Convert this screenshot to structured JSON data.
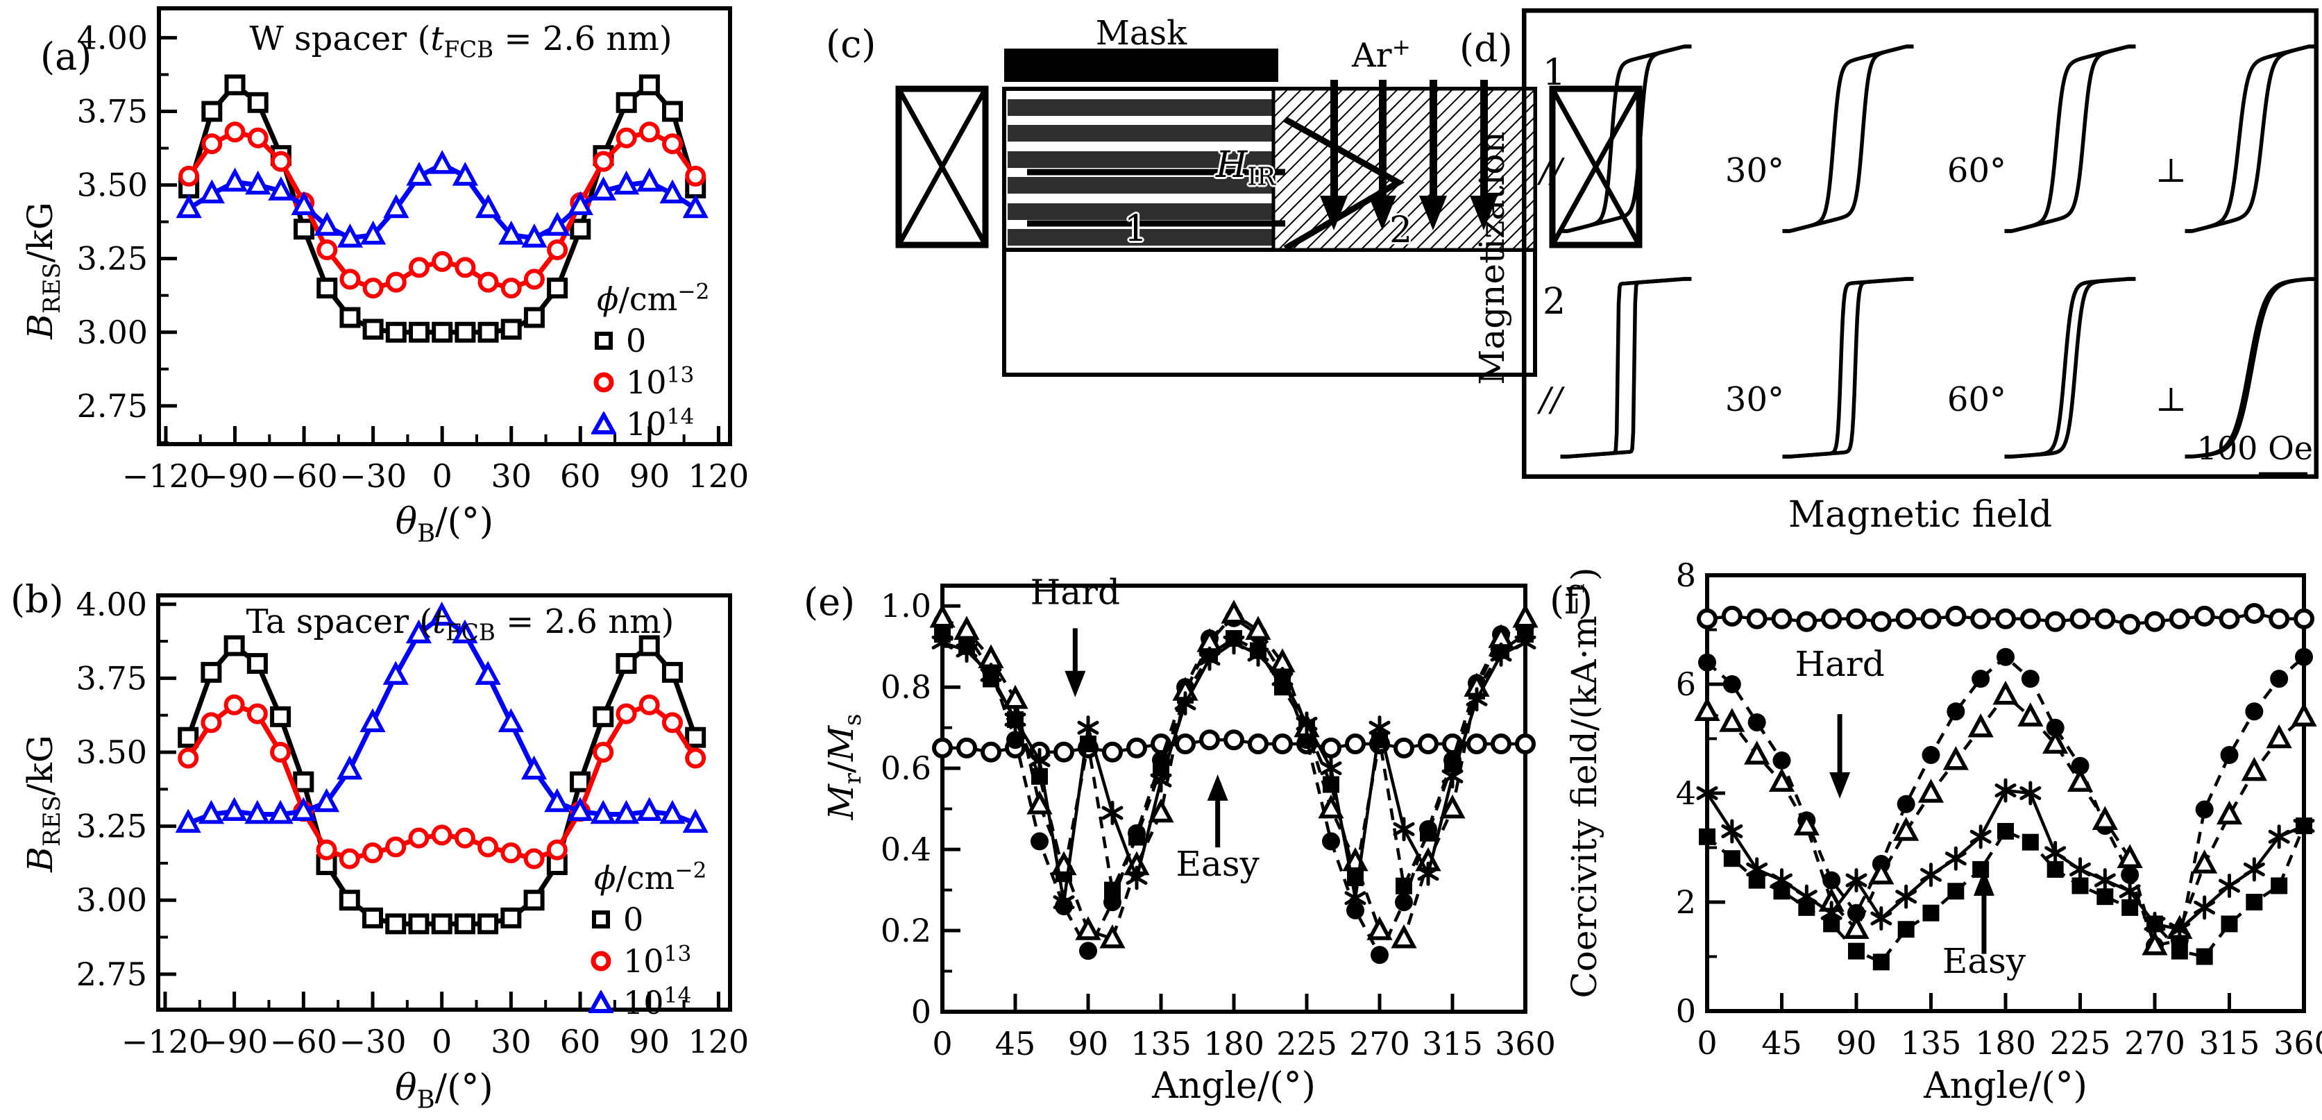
{
  "figure_colors": {
    "black": "#000000",
    "red": "#ff0000",
    "blue": "#0000ff"
  },
  "panel_labels": {
    "a": "(a)",
    "b": "(b)",
    "c": "(c)",
    "d": "(d)",
    "e": "(e)",
    "f": "(f)"
  },
  "panels": {
    "a": {
      "title": "W spacer (*t*_{FCB} = 2.6 nm)",
      "ylabel": "*B*_{RES}/kG",
      "xlabel": "*θ*_{B}/(°)",
      "legend": {
        "title": "*ϕ*/cm^{−2}",
        "entries": [
          {
            "label": "0",
            "marker": "open-square",
            "color": "#000000"
          },
          {
            "label": "10^{13}",
            "marker": "open-circle",
            "color": "#ff0000"
          },
          {
            "label": "10^{14}",
            "marker": "open-triangle",
            "color": "#0000ff"
          }
        ]
      }
    },
    "b": {
      "title": "Ta spacer (*t*_{FCB} = 2.6 nm)",
      "ylabel": "*B*_{RES}/kG",
      "xlabel": "*θ*_{B}/(°)",
      "legend": {
        "title": "*ϕ*/cm^{−2}",
        "entries": [
          {
            "label": "0",
            "marker": "open-square",
            "color": "#000000"
          },
          {
            "label": "10^{13}",
            "marker": "open-circle",
            "color": "#ff0000"
          },
          {
            "label": "10^{14}",
            "marker": "open-triangle",
            "color": "#0000ff"
          }
        ]
      }
    },
    "c": {
      "mask": "Mask",
      "ion": "Ar^{+}",
      "field": "*H*_{IR}",
      "region1": "1",
      "region2": "2"
    },
    "d": {
      "ylabel": "Magnetization",
      "xlabel": "Magnetic field",
      "scalebar": "100 Oe"
    },
    "e": {
      "ylabel": "*M*_{r}/*M*_{s}",
      "xlabel": "Angle/(°)"
    },
    "f": {
      "ylabel": "Coercivity field/(kA·m^{−1})",
      "xlabel": "Angle/(°)"
    }
  },
  "chart_data": [
    {
      "id": "a",
      "type": "line",
      "title": "W spacer (t_FCB = 2.6 nm)",
      "xlabel": "theta_B/(deg)",
      "ylabel": "B_RES/kG",
      "xlim": [
        -123,
        125
      ],
      "ylim": [
        2.62,
        4.1
      ],
      "xticks": [
        -120,
        -90,
        -60,
        -30,
        0,
        30,
        60,
        90,
        120
      ],
      "xtick_labels": [
        "−120",
        "−90",
        "−60",
        "−30",
        "0",
        "30",
        "60",
        "90",
        "120"
      ],
      "xminor": 15,
      "yticks": [
        2.75,
        3.0,
        3.25,
        3.5,
        3.75,
        4.0
      ],
      "ytick_labels": [
        "2.75",
        "3.00",
        "3.25",
        "3.50",
        "3.75",
        "4.00"
      ],
      "yminor": 0.125,
      "grid": false,
      "legend_position": "lower-right",
      "x": [
        -110,
        -100,
        -90,
        -80,
        -70,
        -60,
        -50,
        -40,
        -30,
        -20,
        -10,
        0,
        10,
        20,
        30,
        40,
        50,
        60,
        70,
        80,
        90,
        100,
        110
      ],
      "series": [
        {
          "name": "0",
          "marker": "open-square",
          "color": "#000000",
          "line": "solid",
          "values": [
            3.49,
            3.75,
            3.84,
            3.78,
            3.6,
            3.35,
            3.15,
            3.05,
            3.01,
            3.0,
            3.0,
            3.0,
            3.0,
            3.0,
            3.01,
            3.05,
            3.15,
            3.35,
            3.6,
            3.78,
            3.84,
            3.75,
            3.49
          ]
        },
        {
          "name": "10^13",
          "marker": "open-circle",
          "color": "#ff0000",
          "line": "solid",
          "values": [
            3.53,
            3.64,
            3.68,
            3.66,
            3.58,
            3.44,
            3.28,
            3.18,
            3.15,
            3.17,
            3.22,
            3.24,
            3.22,
            3.17,
            3.15,
            3.18,
            3.28,
            3.44,
            3.58,
            3.66,
            3.68,
            3.64,
            3.53
          ]
        },
        {
          "name": "10^14",
          "marker": "open-triangle",
          "color": "#0000ff",
          "line": "solid",
          "values": [
            3.42,
            3.47,
            3.51,
            3.5,
            3.48,
            3.43,
            3.36,
            3.32,
            3.33,
            3.42,
            3.53,
            3.57,
            3.53,
            3.42,
            3.33,
            3.32,
            3.36,
            3.43,
            3.48,
            3.5,
            3.51,
            3.47,
            3.42
          ]
        }
      ],
      "annotations": []
    },
    {
      "id": "b",
      "type": "line",
      "title": "Ta spacer (t_FCB = 2.6 nm)",
      "xlabel": "theta_B/(deg)",
      "ylabel": "B_RES/kG",
      "xlim": [
        -123,
        125
      ],
      "ylim": [
        2.63,
        4.03
      ],
      "xticks": [
        -120,
        -90,
        -60,
        -30,
        0,
        30,
        60,
        90,
        120
      ],
      "xtick_labels": [
        "−120",
        "−90",
        "−60",
        "−30",
        "0",
        "30",
        "60",
        "90",
        "120"
      ],
      "xminor": 15,
      "yticks": [
        2.75,
        3.0,
        3.25,
        3.5,
        3.75,
        4.0
      ],
      "ytick_labels": [
        "2.75",
        "3.00",
        "3.25",
        "3.50",
        "3.75",
        "4.00"
      ],
      "yminor": 0.125,
      "grid": false,
      "legend_position": "lower-right",
      "x": [
        -110,
        -100,
        -90,
        -80,
        -70,
        -60,
        -50,
        -40,
        -30,
        -20,
        -10,
        0,
        10,
        20,
        30,
        40,
        50,
        60,
        70,
        80,
        90,
        100,
        110
      ],
      "series": [
        {
          "name": "0",
          "marker": "open-square",
          "color": "#000000",
          "line": "solid",
          "values": [
            3.55,
            3.77,
            3.86,
            3.8,
            3.62,
            3.4,
            3.12,
            3.0,
            2.94,
            2.92,
            2.92,
            2.92,
            2.92,
            2.92,
            2.94,
            3.0,
            3.12,
            3.4,
            3.62,
            3.8,
            3.86,
            3.77,
            3.55
          ]
        },
        {
          "name": "10^13",
          "marker": "open-circle",
          "color": "#ff0000",
          "line": "solid",
          "values": [
            3.48,
            3.6,
            3.66,
            3.63,
            3.5,
            3.3,
            3.17,
            3.14,
            3.16,
            3.18,
            3.21,
            3.22,
            3.21,
            3.18,
            3.16,
            3.14,
            3.17,
            3.3,
            3.5,
            3.63,
            3.66,
            3.6,
            3.48
          ]
        },
        {
          "name": "10^14",
          "marker": "open-triangle",
          "color": "#0000ff",
          "line": "solid",
          "values": [
            3.26,
            3.29,
            3.3,
            3.29,
            3.29,
            3.3,
            3.33,
            3.44,
            3.6,
            3.76,
            3.9,
            3.96,
            3.9,
            3.76,
            3.6,
            3.44,
            3.33,
            3.3,
            3.29,
            3.29,
            3.3,
            3.29,
            3.26
          ]
        }
      ],
      "annotations": []
    },
    {
      "id": "e",
      "type": "line",
      "title": "",
      "xlabel": "Angle/(deg)",
      "ylabel": "Mr/Ms",
      "xlim": [
        0,
        360
      ],
      "ylim": [
        0,
        1.05
      ],
      "xticks": [
        0,
        45,
        90,
        135,
        180,
        225,
        270,
        315,
        360
      ],
      "xtick_labels": [
        "0",
        "45",
        "90",
        "135",
        "180",
        "225",
        "270",
        "315",
        "360"
      ],
      "xminor": 22.5,
      "yticks": [
        0,
        0.2,
        0.4,
        0.6,
        0.8,
        1.0
      ],
      "ytick_labels": [
        "0",
        "0.2",
        "0.4",
        "0.6",
        "0.8",
        "1.0"
      ],
      "yminor": 0.1,
      "grid": false,
      "x": [
        0,
        15,
        30,
        45,
        60,
        75,
        90,
        105,
        120,
        135,
        150,
        165,
        180,
        195,
        210,
        225,
        240,
        255,
        270,
        285,
        300,
        315,
        330,
        345,
        360
      ],
      "series": [
        {
          "name": "irradiated-uniform",
          "marker": "open-circle",
          "color": "#000000",
          "line": "solid",
          "values": [
            0.65,
            0.65,
            0.64,
            0.65,
            0.64,
            0.64,
            0.65,
            0.64,
            0.65,
            0.66,
            0.66,
            0.67,
            0.67,
            0.66,
            0.66,
            0.66,
            0.65,
            0.66,
            0.66,
            0.65,
            0.66,
            0.66,
            0.66,
            0.66,
            0.66
          ]
        },
        {
          "name": "filled-circle-series",
          "marker": "filled-circle",
          "color": "#000000",
          "line": "dashed",
          "values": [
            0.96,
            0.93,
            0.84,
            0.67,
            0.42,
            0.26,
            0.15,
            0.27,
            0.44,
            0.62,
            0.8,
            0.92,
            0.97,
            0.93,
            0.83,
            0.67,
            0.42,
            0.25,
            0.14,
            0.27,
            0.45,
            0.62,
            0.81,
            0.93,
            0.95
          ]
        },
        {
          "name": "filled-square-series",
          "marker": "filled-square",
          "color": "#000000",
          "line": "dashed",
          "values": [
            0.93,
            0.9,
            0.82,
            0.72,
            0.58,
            0.34,
            0.66,
            0.3,
            0.43,
            0.6,
            0.78,
            0.88,
            0.92,
            0.89,
            0.8,
            0.7,
            0.56,
            0.33,
            0.67,
            0.31,
            0.44,
            0.61,
            0.79,
            0.89,
            0.93
          ]
        },
        {
          "name": "open-triangle-series",
          "marker": "open-triangle",
          "color": "#000000",
          "line": "dashed",
          "values": [
            0.97,
            0.94,
            0.87,
            0.77,
            0.51,
            0.36,
            0.2,
            0.18,
            0.36,
            0.49,
            0.79,
            0.91,
            0.98,
            0.94,
            0.86,
            0.7,
            0.5,
            0.37,
            0.2,
            0.18,
            0.37,
            0.5,
            0.8,
            0.92,
            0.97
          ]
        },
        {
          "name": "asterisk-series",
          "marker": "asterisk",
          "color": "#000000",
          "line": "solid",
          "values": [
            0.91,
            0.89,
            0.83,
            0.72,
            0.62,
            0.27,
            0.7,
            0.49,
            0.33,
            0.57,
            0.76,
            0.87,
            0.91,
            0.88,
            0.82,
            0.71,
            0.6,
            0.28,
            0.7,
            0.45,
            0.34,
            0.58,
            0.77,
            0.88,
            0.91
          ]
        }
      ],
      "annotations": [
        {
          "text": "Hard",
          "x": 82,
          "y": 1.005,
          "arrow": {
            "x": 82,
            "y1": 0.945,
            "y2": 0.775
          }
        },
        {
          "text": "Easy",
          "x": 170,
          "y": 0.335,
          "arrow": {
            "x": 170,
            "y1": 0.405,
            "y2": 0.585
          }
        }
      ]
    },
    {
      "id": "f",
      "type": "line",
      "title": "",
      "xlabel": "Angle/(deg)",
      "ylabel": "Coercivity field/(kA/m)",
      "xlim": [
        0,
        360
      ],
      "ylim": [
        0,
        8
      ],
      "xticks": [
        0,
        45,
        90,
        135,
        180,
        225,
        270,
        315,
        360
      ],
      "xtick_labels": [
        "0",
        "45",
        "90",
        "135",
        "180",
        "225",
        "270",
        "315",
        "360"
      ],
      "xminor": 22.5,
      "yticks": [
        0,
        2,
        4,
        6,
        8
      ],
      "ytick_labels": [
        "0",
        "2",
        "4",
        "6",
        "8"
      ],
      "yminor": 1,
      "grid": false,
      "x": [
        0,
        15,
        30,
        45,
        60,
        75,
        90,
        105,
        120,
        135,
        150,
        165,
        180,
        195,
        210,
        225,
        240,
        255,
        270,
        285,
        300,
        315,
        330,
        345,
        360
      ],
      "series": [
        {
          "name": "irradiated-uniform",
          "marker": "open-circle",
          "color": "#000000",
          "line": "solid",
          "values": [
            7.2,
            7.25,
            7.2,
            7.2,
            7.15,
            7.2,
            7.2,
            7.15,
            7.2,
            7.2,
            7.25,
            7.2,
            7.2,
            7.2,
            7.15,
            7.2,
            7.2,
            7.1,
            7.15,
            7.2,
            7.25,
            7.2,
            7.3,
            7.2,
            7.2
          ]
        },
        {
          "name": "filled-circle-series",
          "marker": "filled-circle",
          "color": "#000000",
          "line": "dashed",
          "values": [
            6.4,
            6.0,
            5.3,
            4.6,
            3.5,
            2.4,
            1.8,
            2.7,
            3.8,
            4.7,
            5.5,
            6.1,
            6.5,
            6.1,
            5.2,
            4.5,
            3.4,
            2.5,
            1.2,
            1.3,
            3.7,
            4.7,
            5.5,
            6.1,
            6.5
          ]
        },
        {
          "name": "open-triangle-series",
          "marker": "open-triangle",
          "color": "#000000",
          "line": "dashed",
          "values": [
            5.5,
            5.3,
            4.7,
            4.2,
            3.4,
            2.0,
            1.5,
            2.5,
            3.3,
            4.0,
            4.6,
            5.2,
            5.8,
            5.4,
            4.9,
            4.2,
            3.5,
            2.8,
            1.2,
            1.5,
            2.7,
            3.6,
            4.4,
            5.0,
            5.4
          ]
        },
        {
          "name": "asterisk-series",
          "marker": "asterisk",
          "color": "#000000",
          "line": "solid",
          "values": [
            4.0,
            3.3,
            2.6,
            2.4,
            2.1,
            1.8,
            2.4,
            1.7,
            2.1,
            2.5,
            2.8,
            3.2,
            4.05,
            4.0,
            2.9,
            2.6,
            2.4,
            2.2,
            1.6,
            1.5,
            1.9,
            2.3,
            2.6,
            3.2,
            3.4
          ]
        },
        {
          "name": "filled-square-series",
          "marker": "filled-square",
          "color": "#000000",
          "line": "dashed",
          "values": [
            3.2,
            2.8,
            2.4,
            2.2,
            1.9,
            1.6,
            1.1,
            0.9,
            1.5,
            1.8,
            2.2,
            2.6,
            3.3,
            3.1,
            2.6,
            2.3,
            2.1,
            1.9,
            1.6,
            1.1,
            1.0,
            1.6,
            2.0,
            2.3,
            3.4
          ]
        }
      ],
      "annotations": [
        {
          "text": "Hard",
          "x": 80,
          "y": 6.15,
          "arrow": {
            "x": 80,
            "y1": 5.45,
            "y2": 3.9
          }
        },
        {
          "text": "Easy",
          "x": 167,
          "y": 0.7,
          "arrow": {
            "x": 167,
            "y1": 1.05,
            "y2": 2.6
          }
        }
      ]
    },
    {
      "id": "d",
      "type": "hysteresis",
      "ylabel": "Magnetization",
      "xlabel": "Magnetic field",
      "scalebar_label": "100 Oe",
      "scalebar_oe": 100,
      "row_labels": [
        "1",
        "2"
      ],
      "rows": [
        {
          "shear": 0.16,
          "loops": [
            {
              "label": "//",
              "coercivity_oe": 30,
              "transition_width_oe": 12
            },
            {
              "label": "30°",
              "coercivity_oe": 30,
              "transition_width_oe": 13
            },
            {
              "label": "60°",
              "coercivity_oe": 28,
              "transition_width_oe": 15
            },
            {
              "label": "⊥",
              "coercivity_oe": 24,
              "transition_width_oe": 18
            }
          ]
        },
        {
          "shear": 0.05,
          "loops": [
            {
              "label": "//",
              "coercivity_oe": 17,
              "transition_width_oe": 2
            },
            {
              "label": "30°",
              "coercivity_oe": 15,
              "transition_width_oe": 6
            },
            {
              "label": "60°",
              "coercivity_oe": 11,
              "transition_width_oe": 15
            },
            {
              "label": "⊥",
              "coercivity_oe": 3,
              "transition_width_oe": 32
            }
          ]
        }
      ]
    }
  ]
}
